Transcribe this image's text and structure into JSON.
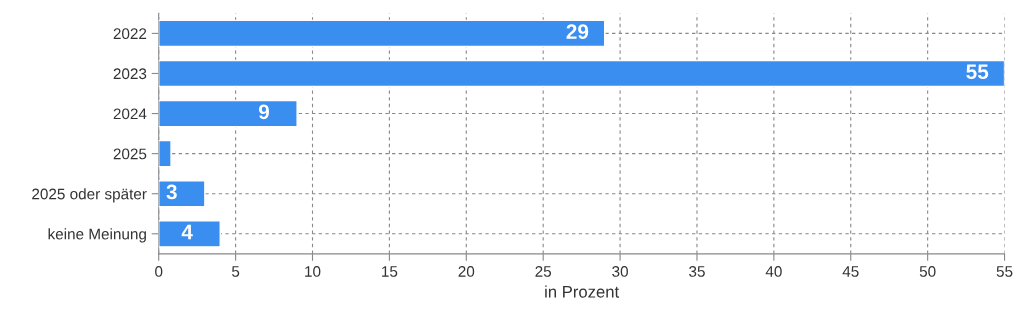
{
  "chart_data": {
    "type": "bar",
    "orientation": "horizontal",
    "xlabel": "in Prozent",
    "categories": [
      "2022",
      "2023",
      "2024",
      "2025",
      "2025 oder später",
      "keine Meinung"
    ],
    "values": [
      29,
      55,
      9,
      0.8,
      3,
      4
    ],
    "value_labels": [
      "29",
      "55",
      "9",
      null,
      "3",
      "4"
    ],
    "color": "#3a8ef0",
    "xlim": [
      0,
      55
    ],
    "xticks": [
      0,
      5,
      10,
      15,
      20,
      25,
      30,
      35,
      40,
      45,
      50,
      55
    ],
    "grid": true,
    "legend": false
  }
}
